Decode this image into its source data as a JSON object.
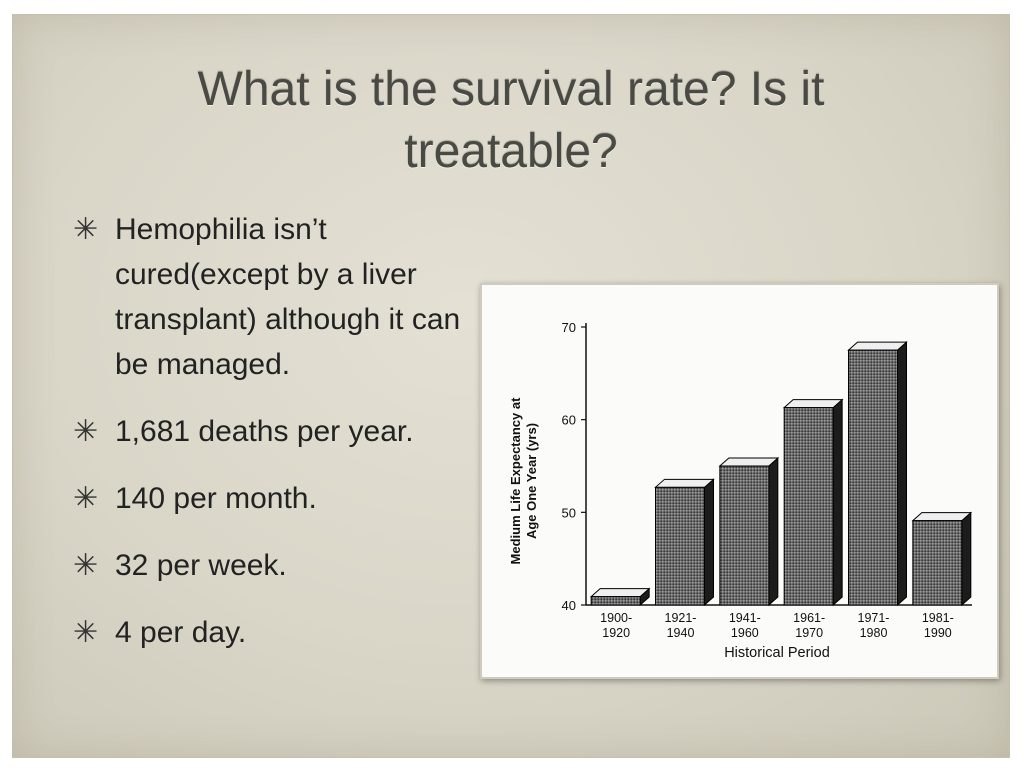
{
  "slide": {
    "title": "What is the survival rate? Is it treatable?",
    "bullet_marker": "✳",
    "bullets": [
      "Hemophilia isn’t cured(except by a liver transplant) although it can be managed.",
      "1,681 deaths per year.",
      "140 per month.",
      "32 per week.",
      "4 per day."
    ]
  },
  "chart_data": {
    "type": "bar",
    "categories": [
      "1900-\n1920",
      "1921-\n1940",
      "1941-\n1960",
      "1961-\n1970",
      "1971-\n1980",
      "1981-\n1990"
    ],
    "values": [
      40.9,
      52.7,
      55.0,
      61.3,
      67.5,
      49.1
    ],
    "xlabel": "Historical Period",
    "ylabel": "Medium Life Expectancy at Age One Year (yrs)",
    "ylabel_lines": [
      "Medium Life Expectancy at",
      "Age One Year (yrs)"
    ],
    "yticks": [
      40,
      50,
      60,
      70
    ],
    "ylim": [
      40,
      70
    ],
    "grid": false,
    "style": "3d-bar",
    "bar_color": "#555555"
  }
}
